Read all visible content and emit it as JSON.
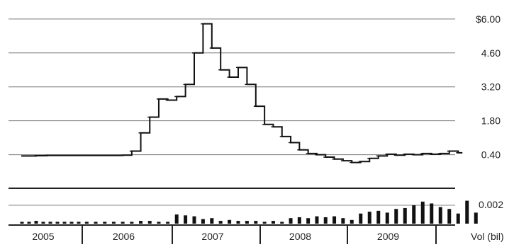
{
  "chart_data": {
    "type": "line",
    "title": "",
    "price_axis": {
      "ticks": [
        {
          "value": 6.0,
          "label": "$6.00"
        },
        {
          "value": 4.6,
          "label": "4.60"
        },
        {
          "value": 3.2,
          "label": "3.20"
        },
        {
          "value": 1.8,
          "label": "1.80"
        },
        {
          "value": 0.4,
          "label": "0.40"
        }
      ],
      "ylim": [
        -0.75,
        6.55
      ]
    },
    "volume_axis": {
      "ticks": [
        {
          "value": 0.002,
          "label": "0.002"
        }
      ],
      "unit_label": "Vol (bil)",
      "ylim": [
        0,
        0.0037
      ]
    },
    "x_axis": {
      "years": [
        "2005",
        "2006",
        "2007",
        "2008",
        "2009"
      ],
      "xlim": [
        2005.0,
        2010.0
      ]
    },
    "grid": true,
    "series": [
      {
        "values_by_period": [
          [
            2005.2,
            0.35
          ],
          [
            2005.35,
            0.36
          ],
          [
            2005.5,
            0.37
          ],
          [
            2005.75,
            0.37
          ],
          [
            2006.0,
            0.37
          ],
          [
            2006.25,
            0.37
          ],
          [
            2006.45,
            0.38
          ],
          [
            2006.55,
            0.55
          ],
          [
            2006.65,
            1.3
          ],
          [
            2006.75,
            1.95
          ],
          [
            2006.85,
            2.7
          ],
          [
            2006.95,
            2.65
          ],
          [
            2007.05,
            2.8
          ],
          [
            2007.15,
            3.3
          ],
          [
            2007.25,
            4.6
          ],
          [
            2007.35,
            5.8
          ],
          [
            2007.45,
            4.8
          ],
          [
            2007.55,
            3.9
          ],
          [
            2007.65,
            3.6
          ],
          [
            2007.75,
            4.0
          ],
          [
            2007.85,
            3.3
          ],
          [
            2007.95,
            2.4
          ],
          [
            2008.05,
            1.65
          ],
          [
            2008.15,
            1.55
          ],
          [
            2008.25,
            1.15
          ],
          [
            2008.35,
            0.9
          ],
          [
            2008.45,
            0.6
          ],
          [
            2008.55,
            0.45
          ],
          [
            2008.65,
            0.4
          ],
          [
            2008.75,
            0.3
          ],
          [
            2008.85,
            0.22
          ],
          [
            2008.95,
            0.15
          ],
          [
            2009.05,
            0.08
          ],
          [
            2009.15,
            0.12
          ],
          [
            2009.25,
            0.25
          ],
          [
            2009.35,
            0.35
          ],
          [
            2009.45,
            0.42
          ],
          [
            2009.55,
            0.38
          ],
          [
            2009.65,
            0.42
          ],
          [
            2009.75,
            0.4
          ],
          [
            2009.85,
            0.45
          ],
          [
            2009.95,
            0.42
          ],
          [
            2010.05,
            0.45
          ],
          [
            2010.15,
            0.55
          ],
          [
            2010.25,
            0.48
          ]
        ]
      }
    ],
    "volume": [
      [
        2005.15,
        0.0002
      ],
      [
        2005.25,
        0.0002
      ],
      [
        2005.35,
        0.0003
      ],
      [
        2005.45,
        0.0002
      ],
      [
        2005.55,
        0.0002
      ],
      [
        2005.65,
        0.0002
      ],
      [
        2005.75,
        0.0002
      ],
      [
        2005.85,
        0.0002
      ],
      [
        2005.95,
        0.0002
      ],
      [
        2006.05,
        0.0002
      ],
      [
        2006.15,
        0.0002
      ],
      [
        2006.25,
        0.0002
      ],
      [
        2006.35,
        0.0002
      ],
      [
        2006.45,
        0.0002
      ],
      [
        2006.55,
        0.0002
      ],
      [
        2006.65,
        0.0003
      ],
      [
        2006.75,
        0.0003
      ],
      [
        2006.85,
        0.0002
      ],
      [
        2006.95,
        0.0002
      ],
      [
        2007.05,
        0.001
      ],
      [
        2007.15,
        0.0009
      ],
      [
        2007.25,
        0.0008
      ],
      [
        2007.35,
        0.0005
      ],
      [
        2007.45,
        0.0006
      ],
      [
        2007.55,
        0.0003
      ],
      [
        2007.65,
        0.0004
      ],
      [
        2007.75,
        0.0003
      ],
      [
        2007.85,
        0.0003
      ],
      [
        2007.95,
        0.0003
      ],
      [
        2008.05,
        0.0002
      ],
      [
        2008.15,
        0.0003
      ],
      [
        2008.25,
        0.0002
      ],
      [
        2008.35,
        0.0006
      ],
      [
        2008.45,
        0.0007
      ],
      [
        2008.55,
        0.0006
      ],
      [
        2008.65,
        0.0008
      ],
      [
        2008.75,
        0.0007
      ],
      [
        2008.85,
        0.0008
      ],
      [
        2008.95,
        0.0006
      ],
      [
        2009.05,
        0.0004
      ],
      [
        2009.15,
        0.0011
      ],
      [
        2009.25,
        0.0013
      ],
      [
        2009.35,
        0.0014
      ],
      [
        2009.45,
        0.0012
      ],
      [
        2009.55,
        0.0016
      ],
      [
        2009.65,
        0.0017
      ],
      [
        2009.75,
        0.002
      ],
      [
        2009.85,
        0.0024
      ],
      [
        2009.95,
        0.0022
      ],
      [
        2010.05,
        0.0018
      ],
      [
        2010.15,
        0.0016
      ],
      [
        2010.25,
        0.0011
      ],
      [
        2010.35,
        0.0025
      ],
      [
        2010.45,
        0.0012
      ]
    ]
  }
}
